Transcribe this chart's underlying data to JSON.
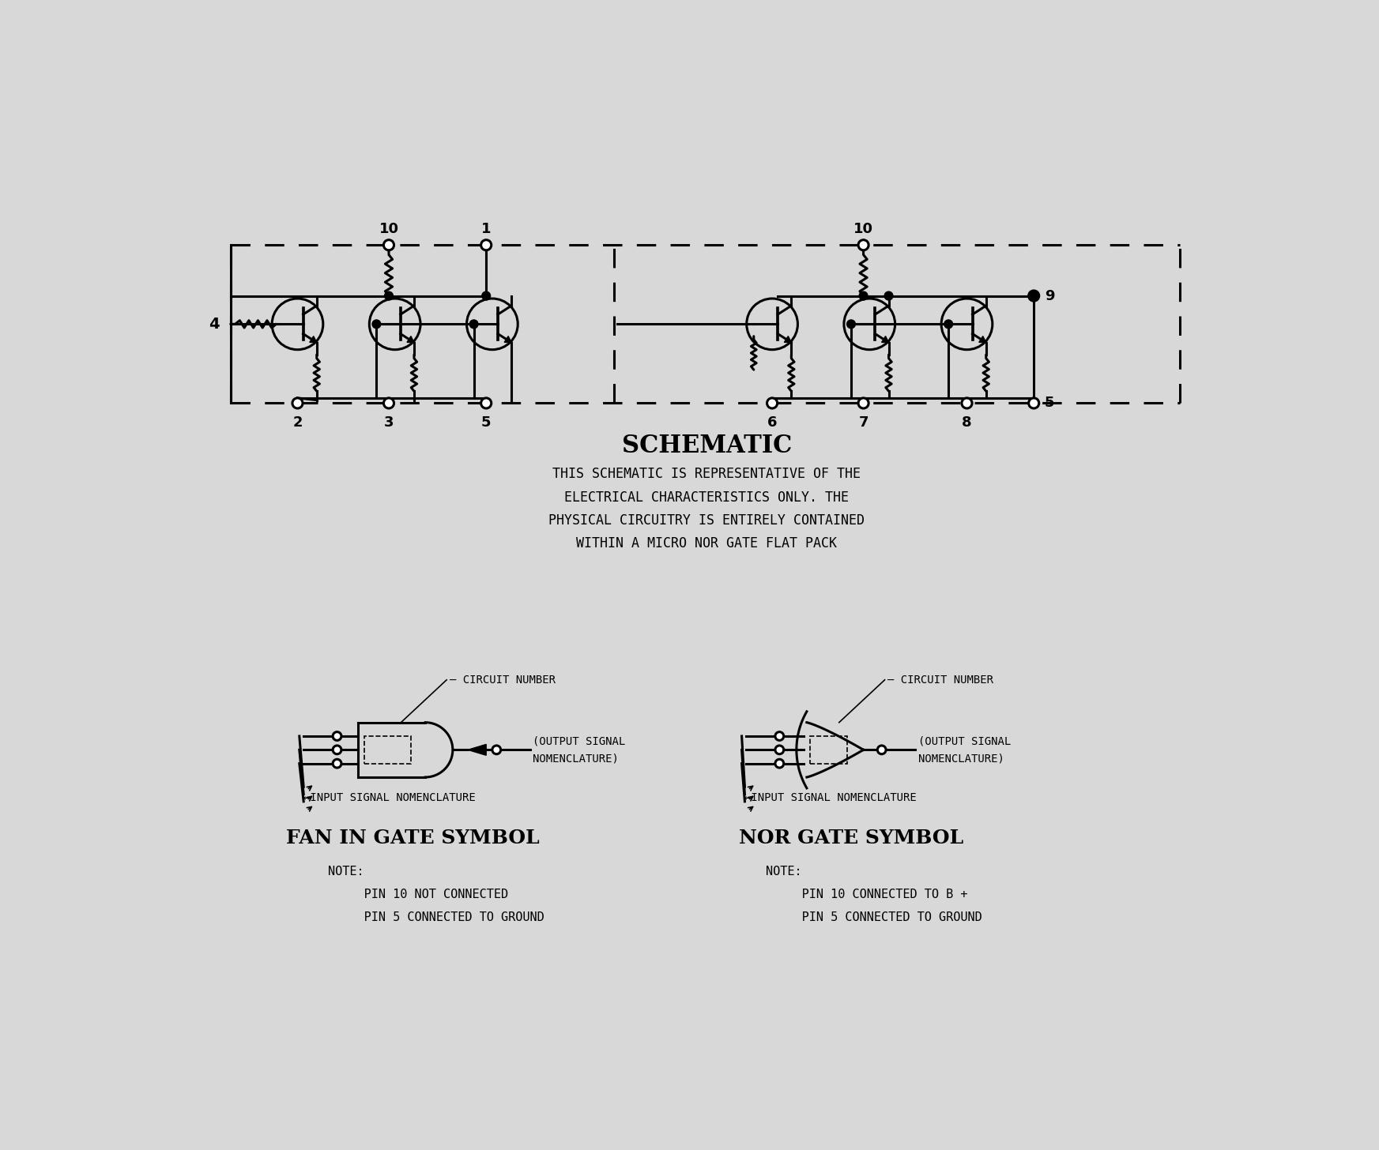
{
  "bg_color": "#d8d8d8",
  "line_color": "#000000",
  "title": "SCHEMATIC",
  "description_lines": [
    "THIS SCHEMATIC IS REPRESENTATIVE OF THE",
    "ELECTRICAL CHARACTERISTICS ONLY. THE",
    "PHYSICAL CIRCUITRY IS ENTIRELY CONTAINED",
    "WITHIN A MICRO NOR GATE FLAT PACK"
  ],
  "fan_in_title": "FAN IN GATE SYMBOL",
  "nor_gate_title": "NOR GATE SYMBOL",
  "fan_in_note_lines": [
    "NOTE:",
    "     PIN 10 NOT CONNECTED",
    "     PIN 5 CONNECTED TO GROUND"
  ],
  "nor_gate_note_lines": [
    "NOTE:",
    "     PIN 10 CONNECTED TO B +",
    "     PIN 5 CONNECTED TO GROUND"
  ],
  "lw": 2.2,
  "lw_thin": 1.2
}
